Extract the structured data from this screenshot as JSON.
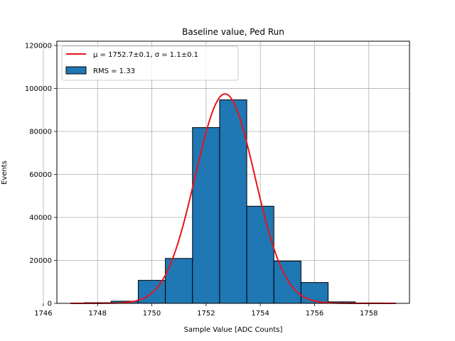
{
  "chart_data": {
    "type": "bar",
    "title": "Baseline value, Ped Run",
    "xlabel": "Sample Value [ADC Counts]",
    "ylabel": "Events",
    "xlim": [
      1746.5,
      1759.5
    ],
    "ylim": [
      0,
      122000
    ],
    "grid": true,
    "legend_position": "top-left",
    "x_ticks": [
      "1746",
      "1748",
      "1750",
      "1752",
      "1754",
      "1756",
      "1758"
    ],
    "y_ticks": [
      "0",
      "20000",
      "40000",
      "60000",
      "80000",
      "100000",
      "120000"
    ],
    "x_tick_values": [
      1746,
      1748,
      1750,
      1752,
      1754,
      1756,
      1758
    ],
    "y_tick_values": [
      0,
      20000,
      40000,
      60000,
      80000,
      100000,
      120000
    ],
    "histogram": {
      "name": "RMS = 1.33",
      "color": "#1f77b4",
      "edge_color": "#000000",
      "bins": [
        {
          "x0": 1747.5,
          "x1": 1748.5,
          "value": 300
        },
        {
          "x0": 1748.5,
          "x1": 1749.5,
          "value": 1000
        },
        {
          "x0": 1749.5,
          "x1": 1750.5,
          "value": 10700
        },
        {
          "x0": 1750.5,
          "x1": 1751.5,
          "value": 20900
        },
        {
          "x0": 1751.5,
          "x1": 1752.5,
          "value": 81800
        },
        {
          "x0": 1752.5,
          "x1": 1753.5,
          "value": 94700
        },
        {
          "x0": 1753.5,
          "x1": 1754.5,
          "value": 45200
        },
        {
          "x0": 1754.5,
          "x1": 1755.5,
          "value": 19700
        },
        {
          "x0": 1755.5,
          "x1": 1756.5,
          "value": 9700
        },
        {
          "x0": 1756.5,
          "x1": 1757.5,
          "value": 700
        },
        {
          "x0": 1757.5,
          "x1": 1758.5,
          "value": 200
        }
      ]
    },
    "fit": {
      "type": "gaussian",
      "name": "μ = 1752.7±0.1, σ = 1.1±0.1",
      "color": "#e8141c",
      "amplitude": 97500,
      "mu": 1752.7,
      "sigma": 1.1,
      "x_range": [
        1747,
        1759
      ]
    }
  }
}
